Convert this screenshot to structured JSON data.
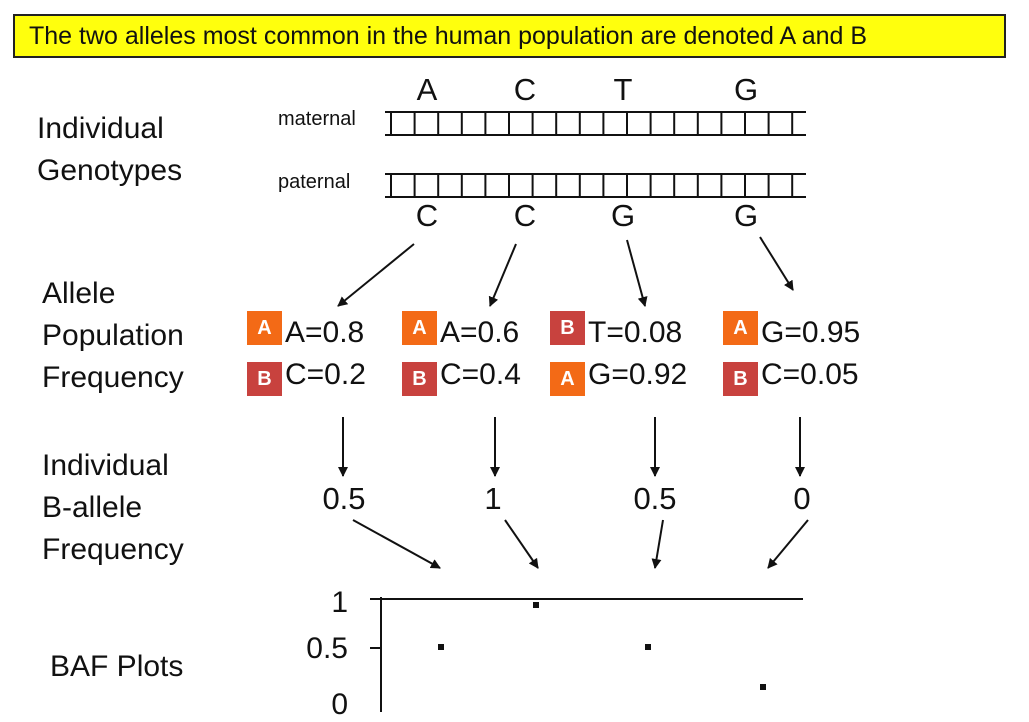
{
  "title": "The two alleles most common in the human population are denoted A and B",
  "section_labels": {
    "genotypes": [
      "Individual",
      "Genotypes"
    ],
    "population_frequency": [
      "Allele",
      "Population",
      "Frequency"
    ],
    "baf": [
      "Individual",
      "B-allele",
      "Frequency"
    ],
    "baf_plots": "BAF Plots"
  },
  "strands": {
    "maternal_label": "maternal",
    "paternal_label": "paternal"
  },
  "maternal_bases": [
    "A",
    "C",
    "T",
    "G"
  ],
  "paternal_bases": [
    "C",
    "C",
    "G",
    "G"
  ],
  "loci": [
    {
      "rows": [
        {
          "badge": "A",
          "text": "A=0.8"
        },
        {
          "badge": "B",
          "text": "C=0.2"
        }
      ],
      "baf": "0.5"
    },
    {
      "rows": [
        {
          "badge": "A",
          "text": "A=0.6"
        },
        {
          "badge": "B",
          "text": "C=0.4"
        }
      ],
      "baf": "1"
    },
    {
      "rows": [
        {
          "badge": "B",
          "text": "T=0.08"
        },
        {
          "badge": "A",
          "text": "G=0.92"
        }
      ],
      "baf": "0.5"
    },
    {
      "rows": [
        {
          "badge": "A",
          "text": "G=0.95"
        },
        {
          "badge": "B",
          "text": "C=0.05"
        }
      ],
      "baf": "0"
    }
  ],
  "plot": {
    "tick_labels": [
      "1",
      "0.5",
      "0"
    ]
  },
  "colors": {
    "banner": "#ffff0d",
    "badge_a": "#f36a16",
    "badge_b": "#c8423e"
  }
}
